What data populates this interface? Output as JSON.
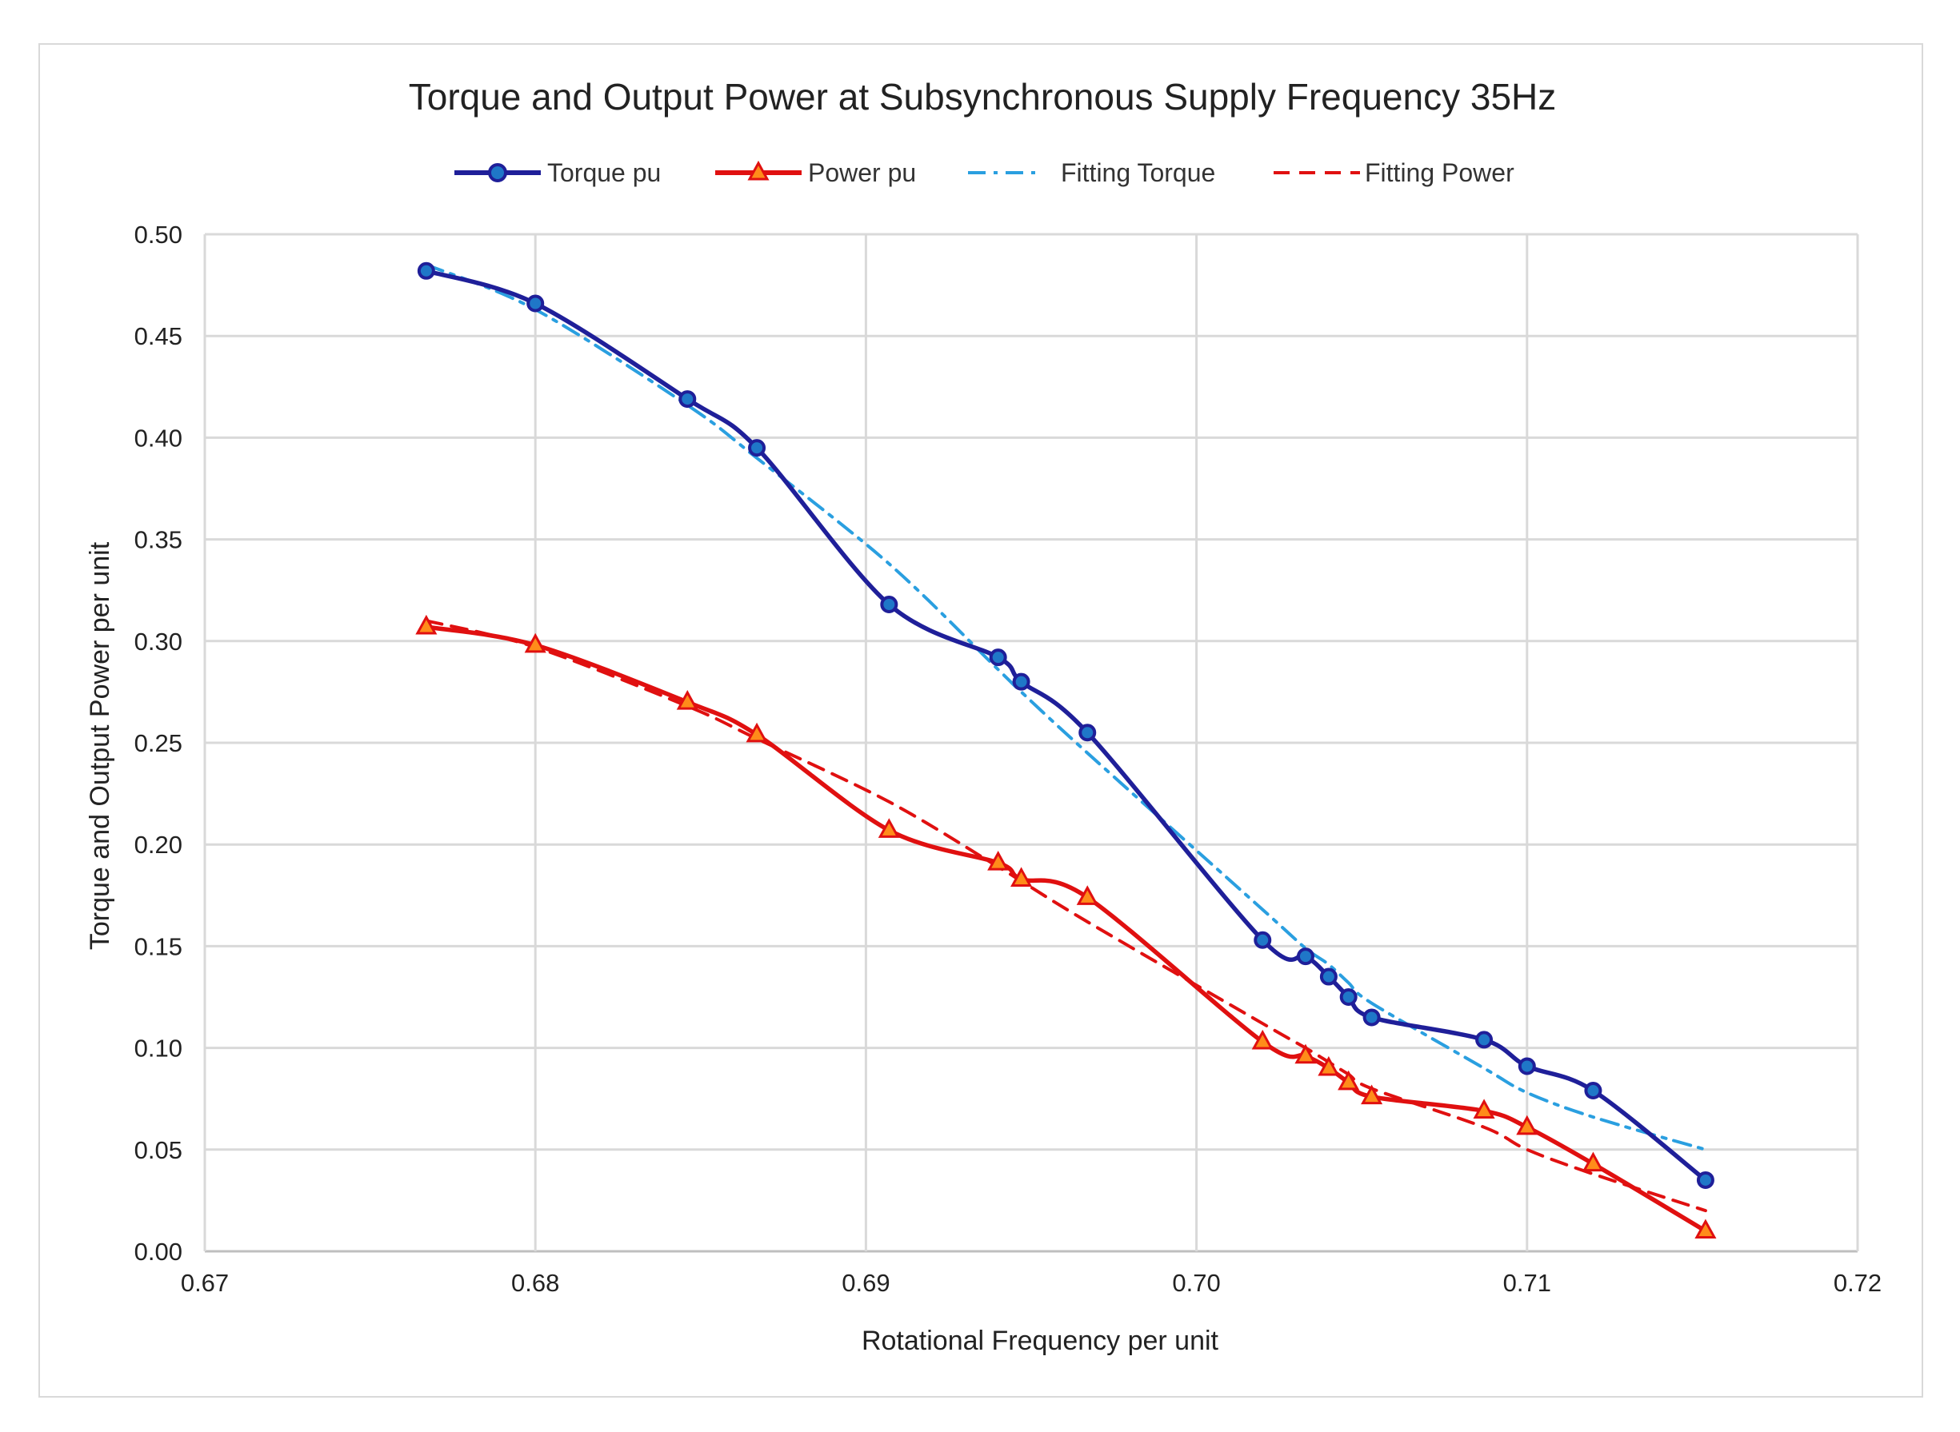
{
  "chart_data": {
    "type": "line",
    "title": "Torque and Output Power at Subsynchronous  Supply Frequency 35Hz",
    "xlabel": "Rotational Frequency per unit",
    "ylabel": "Torque and Output Power per unit",
    "xlim": [
      0.67,
      0.72
    ],
    "ylim": [
      0.0,
      0.5
    ],
    "x_ticks": [
      "0.67",
      "0.68",
      "0.69",
      "0.70",
      "0.71",
      "0.72"
    ],
    "y_ticks": [
      "0.00",
      "0.05",
      "0.10",
      "0.15",
      "0.20",
      "0.25",
      "0.30",
      "0.35",
      "0.40",
      "0.45",
      "0.50"
    ],
    "grid": true,
    "legend_position": "top",
    "colors": {
      "torque": "#1f1f99",
      "torque_marker": "#1f77c8",
      "power": "#e01010",
      "power_marker": "#ff8c1a",
      "fitting_torque": "#2a9fe0",
      "fitting_power": "#e01010",
      "grid": "#d9d9d9",
      "axis": "#bfbfbf"
    },
    "x": [
      0.6767,
      0.68,
      0.6846,
      0.6867,
      0.6907,
      0.694,
      0.6947,
      0.6967,
      0.702,
      0.7033,
      0.704,
      0.7046,
      0.7053,
      0.7087,
      0.71,
      0.712,
      0.7154
    ],
    "series": [
      {
        "name": "Torque pu",
        "style": "solid-marker-circle",
        "values": [
          0.482,
          0.466,
          0.419,
          0.395,
          0.318,
          0.292,
          0.28,
          0.255,
          0.153,
          0.145,
          0.135,
          0.125,
          0.115,
          0.104,
          0.091,
          0.079,
          0.035
        ]
      },
      {
        "name": "Power pu",
        "style": "solid-marker-triangle",
        "values": [
          0.307,
          0.298,
          0.27,
          0.254,
          0.207,
          0.191,
          0.183,
          0.174,
          0.103,
          0.096,
          0.09,
          0.083,
          0.076,
          0.069,
          0.061,
          0.043,
          0.01
        ]
      },
      {
        "name": "Fitting Torque",
        "style": "dash-dot",
        "values": [
          0.485,
          0.463,
          0.416,
          0.39,
          0.338,
          0.286,
          0.275,
          0.245,
          0.168,
          0.149,
          0.141,
          0.132,
          0.122,
          0.09,
          0.078,
          0.066,
          0.05
        ]
      },
      {
        "name": "Fitting Power",
        "style": "dashed",
        "values": [
          0.31,
          0.297,
          0.268,
          0.252,
          0.221,
          0.189,
          0.182,
          0.162,
          0.112,
          0.1,
          0.093,
          0.087,
          0.08,
          0.061,
          0.05,
          0.038,
          0.02
        ]
      }
    ]
  }
}
